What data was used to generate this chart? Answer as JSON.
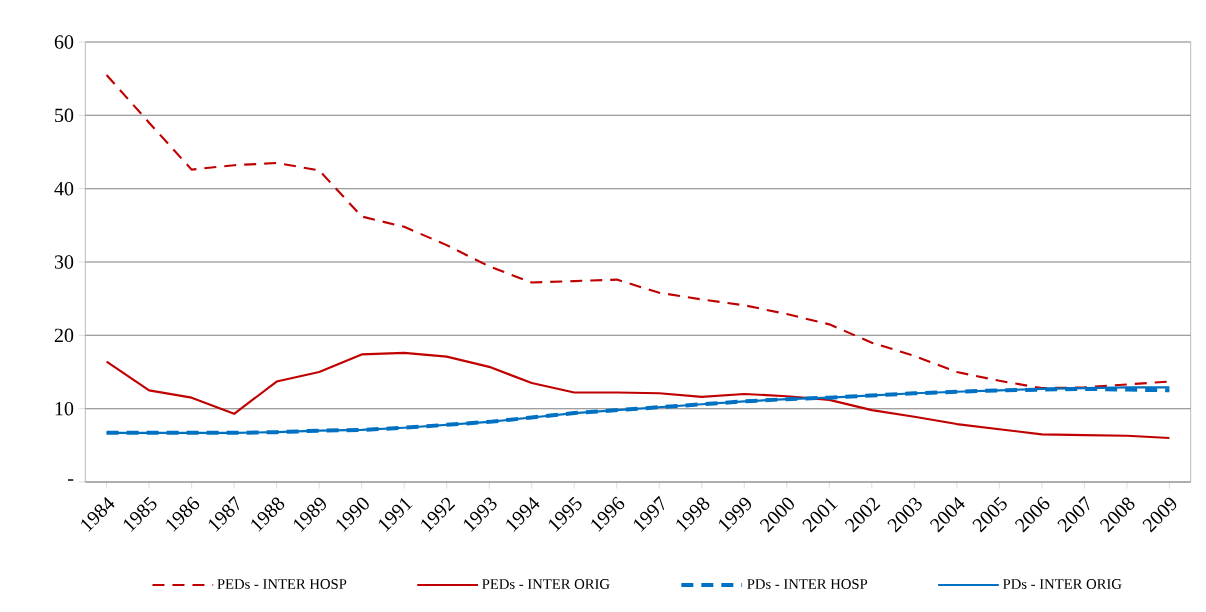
{
  "chart_data": {
    "type": "line",
    "categories": [
      "1984",
      "1985",
      "1986",
      "1987",
      "1988",
      "1989",
      "1990",
      "1991",
      "1992",
      "1993",
      "1994",
      "1995",
      "1996",
      "1997",
      "1998",
      "1999",
      "2000",
      "2001",
      "2002",
      "2003",
      "2004",
      "2005",
      "2006",
      "2007",
      "2008",
      "2009"
    ],
    "series": [
      {
        "name": "PEDs - INTER HOSP",
        "color": "#c00000",
        "line_style": "dashed",
        "values": [
          55.5,
          49,
          42.6,
          43.2,
          43.5,
          42.5,
          36.2,
          34.8,
          32.3,
          29.4,
          27.2,
          27.4,
          27.6,
          25.8,
          24.9,
          24.1,
          22.9,
          21.5,
          19,
          17.2,
          15,
          13.8,
          12.8,
          12.9,
          13.3,
          13.7
        ]
      },
      {
        "name": "PEDs - INTER ORIG",
        "color": "#c00000",
        "line_style": "solid",
        "values": [
          16.4,
          12.5,
          11.5,
          9.3,
          13.7,
          15,
          17.4,
          17.6,
          17.1,
          15.7,
          13.5,
          12.2,
          12.2,
          12.1,
          11.6,
          12,
          11.7,
          11.2,
          9.8,
          8.9,
          7.9,
          7.2,
          6.5,
          6.4,
          6.3,
          6.0
        ]
      },
      {
        "name": "PDs - INTER HOSP",
        "color": "#0072c6",
        "line_style": "dashed",
        "values": [
          6.7,
          6.7,
          6.7,
          6.7,
          6.8,
          7,
          7.1,
          7.4,
          7.8,
          8.2,
          8.8,
          9.4,
          9.8,
          10.2,
          10.6,
          11,
          11.3,
          11.5,
          11.8,
          12.1,
          12.3,
          12.5,
          12.6,
          12.7,
          12.6,
          12.5
        ]
      },
      {
        "name": "PDs - INTER ORIG",
        "color": "#0070c0",
        "line_style": "solid",
        "values": [
          6.7,
          6.7,
          6.7,
          6.7,
          6.8,
          7,
          7.1,
          7.4,
          7.8,
          8.2,
          8.8,
          9.4,
          9.8,
          10.2,
          10.6,
          11,
          11.3,
          11.5,
          11.8,
          12.1,
          12.3,
          12.5,
          12.7,
          12.8,
          12.9,
          12.9
        ]
      }
    ],
    "ylim": [
      0,
      60
    ],
    "yticks": [
      {
        "value": 0,
        "label": "-"
      },
      10,
      20,
      30,
      40,
      50,
      60
    ],
    "grid": "y",
    "legend": "bottom",
    "marker": "none"
  }
}
